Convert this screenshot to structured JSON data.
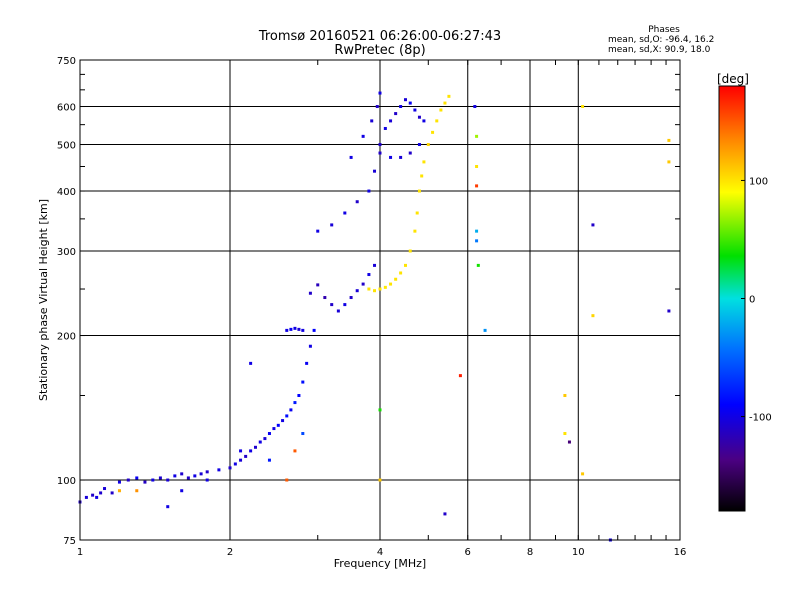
{
  "chart_data": {
    "type": "scatter",
    "title": "Tromsø 20160521 06:26:00-06:27:43",
    "subtitle": "RwPretec (8p)",
    "phase_stats": {
      "heading": "Phases",
      "line_o": "mean, sd,O: -96.4, 16.2",
      "line_x": "mean, sd,X:  90.9, 18.0"
    },
    "xlabel": "Frequency [MHz]",
    "ylabel": "Stationary phase Virtual Height [km]",
    "x_scale": "log",
    "y_scale": "log",
    "xlim": [
      1,
      16
    ],
    "ylim": [
      75,
      750
    ],
    "x_ticks": [
      1,
      2,
      4,
      6,
      8,
      10,
      16
    ],
    "x_tick_labels": [
      "1",
      "2",
      "4",
      "6",
      "8",
      "10",
      "16"
    ],
    "y_ticks": [
      75,
      100,
      200,
      300,
      400,
      500,
      600,
      750
    ],
    "y_tick_labels": [
      "75",
      "100",
      "200",
      "300",
      "400",
      "500",
      "600",
      "750"
    ],
    "grid": true,
    "colorbar": {
      "label": "[deg]",
      "range": [
        -180,
        180
      ],
      "ticks": [
        100,
        0,
        -100
      ],
      "tick_labels": [
        "100",
        "0",
        "-100"
      ]
    },
    "series": [
      {
        "points": [
          [
            1.0,
            90,
            -110
          ],
          [
            1.03,
            92,
            -105
          ],
          [
            1.06,
            93,
            -110
          ],
          [
            1.08,
            92,
            -100
          ],
          [
            1.1,
            94,
            -108
          ],
          [
            1.12,
            96,
            -105
          ],
          [
            1.16,
            94,
            -110
          ],
          [
            1.2,
            99,
            -100
          ],
          [
            1.25,
            100,
            -110
          ],
          [
            1.3,
            101,
            -95
          ],
          [
            1.35,
            99,
            -112
          ],
          [
            1.4,
            100,
            -100
          ],
          [
            1.45,
            101,
            -108
          ],
          [
            1.5,
            100,
            -105
          ],
          [
            1.55,
            102,
            -100
          ],
          [
            1.6,
            103,
            -108
          ],
          [
            1.65,
            101,
            -110
          ],
          [
            1.7,
            102,
            -100
          ],
          [
            1.75,
            103,
            -105
          ],
          [
            1.8,
            104,
            -110
          ],
          [
            1.9,
            105,
            -100
          ],
          [
            2.0,
            106,
            -108
          ],
          [
            2.05,
            108,
            -100
          ],
          [
            2.1,
            110,
            -105
          ],
          [
            2.15,
            112,
            -110
          ],
          [
            2.2,
            115,
            -100
          ],
          [
            2.25,
            117,
            -108
          ],
          [
            2.3,
            120,
            -100
          ],
          [
            2.35,
            122,
            -105
          ],
          [
            2.4,
            125,
            -95
          ],
          [
            2.45,
            128,
            -100
          ],
          [
            2.5,
            130,
            -90
          ],
          [
            2.55,
            133,
            -100
          ],
          [
            2.6,
            136,
            -85
          ],
          [
            2.65,
            140,
            -95
          ],
          [
            2.7,
            145,
            -80
          ],
          [
            2.75,
            150,
            -90
          ],
          [
            2.8,
            160,
            -85
          ],
          [
            2.85,
            175,
            -95
          ],
          [
            2.9,
            190,
            -100
          ],
          [
            2.95,
            205,
            -90
          ]
        ]
      },
      {
        "points": [
          [
            2.6,
            205,
            -100
          ],
          [
            2.65,
            206,
            -95
          ],
          [
            2.7,
            207,
            -100
          ],
          [
            2.75,
            206,
            -105
          ],
          [
            2.8,
            205,
            -100
          ],
          [
            2.9,
            245,
            -110
          ],
          [
            3.0,
            255,
            -115
          ],
          [
            3.1,
            240,
            -120
          ],
          [
            3.2,
            232,
            -110
          ],
          [
            3.3,
            225,
            -105
          ],
          [
            3.4,
            232,
            -100
          ],
          [
            3.5,
            240,
            -110
          ],
          [
            3.6,
            248,
            -105
          ],
          [
            3.7,
            256,
            -110
          ],
          [
            3.8,
            268,
            -100
          ],
          [
            3.9,
            280,
            -105
          ]
        ]
      },
      {
        "points": [
          [
            3.0,
            330,
            -100
          ],
          [
            3.2,
            340,
            -105
          ],
          [
            3.4,
            360,
            -100
          ],
          [
            3.6,
            380,
            -110
          ],
          [
            3.8,
            400,
            -100
          ],
          [
            3.9,
            440,
            -105
          ],
          [
            4.0,
            480,
            -110
          ],
          [
            3.5,
            470,
            -100
          ],
          [
            3.7,
            520,
            -100
          ],
          [
            3.85,
            560,
            -105
          ],
          [
            3.95,
            600,
            -110
          ],
          [
            4.0,
            640,
            -100
          ]
        ]
      },
      {
        "points": [
          [
            4.0,
            500,
            -110
          ],
          [
            4.1,
            540,
            -100
          ],
          [
            4.2,
            560,
            -105
          ],
          [
            4.3,
            580,
            -110
          ],
          [
            4.4,
            600,
            -100
          ],
          [
            4.5,
            620,
            -105
          ],
          [
            4.6,
            610,
            -95
          ],
          [
            4.7,
            590,
            -100
          ],
          [
            4.8,
            570,
            -110
          ],
          [
            4.9,
            560,
            -100
          ],
          [
            4.2,
            470,
            -100
          ],
          [
            4.4,
            470,
            -105
          ],
          [
            4.6,
            480,
            -110
          ],
          [
            4.8,
            500,
            -100
          ]
        ]
      },
      {
        "points": [
          [
            3.8,
            250,
            100
          ],
          [
            3.9,
            248,
            100
          ],
          [
            4.0,
            250,
            100
          ],
          [
            4.1,
            252,
            98
          ],
          [
            4.2,
            256,
            100
          ],
          [
            4.3,
            262,
            100
          ],
          [
            4.4,
            270,
            100
          ],
          [
            4.5,
            280,
            100
          ],
          [
            4.6,
            300,
            100
          ],
          [
            4.7,
            330,
            100
          ],
          [
            4.75,
            360,
            100
          ],
          [
            4.8,
            400,
            100
          ],
          [
            4.85,
            430,
            100
          ],
          [
            4.9,
            460,
            100
          ],
          [
            5.0,
            500,
            105
          ],
          [
            5.1,
            530,
            100
          ],
          [
            5.2,
            560,
            100
          ],
          [
            5.3,
            590,
            100
          ],
          [
            5.4,
            610,
            100
          ],
          [
            5.5,
            630,
            100
          ]
        ]
      },
      {
        "points": [
          [
            6.2,
            600,
            -100
          ],
          [
            6.25,
            520,
            70
          ],
          [
            6.25,
            450,
            100
          ],
          [
            6.25,
            410,
            160
          ],
          [
            6.25,
            330,
            -20
          ],
          [
            6.25,
            315,
            -40
          ],
          [
            6.3,
            280,
            40
          ],
          [
            6.5,
            205,
            -30
          ],
          [
            5.8,
            165,
            170
          ],
          [
            5.4,
            85,
            -110
          ],
          [
            4.0,
            140,
            40
          ],
          [
            4.0,
            100,
            110
          ],
          [
            2.7,
            115,
            150
          ],
          [
            2.6,
            100,
            150
          ],
          [
            2.8,
            125,
            -60
          ],
          [
            2.4,
            110,
            -80
          ],
          [
            2.2,
            175,
            -100
          ],
          [
            2.1,
            115,
            -100
          ],
          [
            1.8,
            100,
            -100
          ],
          [
            1.6,
            95,
            -100
          ],
          [
            1.5,
            88,
            -100
          ],
          [
            1.3,
            95,
            130
          ],
          [
            1.2,
            95,
            120
          ],
          [
            9.4,
            150,
            110
          ],
          [
            9.4,
            125,
            100
          ],
          [
            9.6,
            120,
            -140
          ],
          [
            10.2,
            103,
            110
          ],
          [
            10.7,
            340,
            -110
          ],
          [
            10.7,
            220,
            105
          ],
          [
            11.6,
            75,
            -100
          ],
          [
            15.2,
            510,
            110
          ],
          [
            15.2,
            460,
            110
          ],
          [
            15.2,
            225,
            -110
          ],
          [
            10.2,
            600,
            100
          ]
        ]
      }
    ]
  }
}
